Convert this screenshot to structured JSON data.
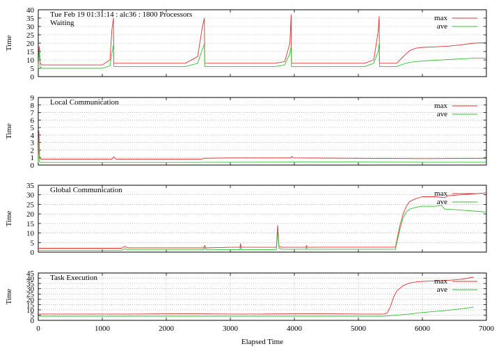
{
  "chart_data": [
    {
      "type": "line",
      "title": "Tue Feb 19 01:31:14 : alc36 : 1800 Processors",
      "label": "Waiting",
      "ylabel": "Time",
      "xlabel": "",
      "xlim": [
        0,
        7000
      ],
      "ylim": [
        0,
        40
      ],
      "yticks": [
        0,
        5,
        10,
        15,
        20,
        25,
        30,
        35,
        40
      ],
      "xtick_labels_shown": false,
      "grid": "horizontal-dotted",
      "legend": "top-right",
      "series": [
        {
          "name": "max",
          "color": "#e03030",
          "x": [
            0,
            15,
            30,
            60,
            500,
            1000,
            1120,
            1150,
            1175,
            1180,
            1200,
            1600,
            2300,
            2490,
            2560,
            2595,
            2600,
            2620,
            3000,
            3700,
            3850,
            3930,
            3950,
            3955,
            3970,
            4400,
            5100,
            5240,
            5310,
            5325,
            5330,
            5350,
            5550,
            5600,
            5700,
            5800,
            5900,
            6000,
            6200,
            6400,
            6600,
            6800,
            7000
          ],
          "y": [
            7,
            18,
            8,
            7,
            7,
            7,
            10,
            28,
            35,
            8,
            8,
            8,
            8,
            12,
            29,
            35,
            8,
            8,
            8,
            8,
            9,
            20,
            37,
            8,
            8,
            8,
            8,
            10,
            27,
            36,
            8,
            8,
            8,
            8,
            12,
            15.5,
            17,
            17.5,
            17.8,
            18.2,
            19,
            20,
            20.3
          ]
        },
        {
          "name": "ave",
          "color": "#30c030",
          "x": [
            0,
            15,
            30,
            60,
            500,
            1000,
            1120,
            1150,
            1175,
            1180,
            1200,
            1600,
            2300,
            2490,
            2560,
            2595,
            2600,
            2620,
            3000,
            3700,
            3850,
            3930,
            3950,
            3955,
            3970,
            4400,
            5100,
            5240,
            5310,
            5325,
            5330,
            5350,
            5550,
            5600,
            5700,
            5800,
            5900,
            6000,
            6200,
            6400,
            6600,
            6800,
            7000
          ],
          "y": [
            5,
            15,
            6,
            5,
            5,
            5,
            6.5,
            14,
            19,
            6,
            6,
            6,
            6,
            8,
            16,
            19.5,
            6,
            6,
            6,
            6,
            7,
            14,
            18,
            6,
            6,
            6,
            6,
            8,
            15,
            20,
            6,
            6,
            6,
            6,
            7.5,
            8.5,
            9,
            9.3,
            9.8,
            10.2,
            10.6,
            11,
            11
          ]
        }
      ]
    },
    {
      "type": "line",
      "label": "Local Communication",
      "ylabel": "Time",
      "xlabel": "",
      "xlim": [
        0,
        7000
      ],
      "ylim": [
        0,
        9
      ],
      "yticks": [
        0,
        1,
        2,
        3,
        4,
        5,
        6,
        7,
        8,
        9
      ],
      "xtick_labels_shown": false,
      "grid": "horizontal-dotted",
      "legend": "top-right",
      "series": [
        {
          "name": "max",
          "color": "#e03030",
          "x": [
            0,
            10,
            20,
            40,
            500,
            1150,
            1180,
            1210,
            2000,
            2550,
            2600,
            3000,
            3950,
            3960,
            3990,
            5000,
            6000,
            7000
          ],
          "y": [
            0.8,
            4.5,
            1.0,
            0.8,
            0.8,
            0.8,
            1.1,
            0.8,
            0.8,
            0.8,
            0.9,
            0.95,
            0.95,
            1.15,
            0.95,
            0.9,
            0.85,
            0.9
          ]
        },
        {
          "name": "ave",
          "color": "#30c030",
          "x": [
            0,
            10,
            20,
            40,
            1000,
            2000,
            3000,
            4000,
            5000,
            6000,
            7000
          ],
          "y": [
            0.3,
            3.0,
            0.4,
            0.35,
            0.35,
            0.35,
            0.38,
            0.4,
            0.4,
            0.38,
            0.38
          ]
        }
      ]
    },
    {
      "type": "line",
      "label": "Global Communication",
      "ylabel": "Time",
      "xlabel": "",
      "xlim": [
        0,
        7000
      ],
      "ylim": [
        0,
        35
      ],
      "yticks": [
        0,
        5,
        10,
        15,
        20,
        25,
        30,
        35
      ],
      "xtick_labels_shown": false,
      "grid": "horizontal-dotted",
      "legend": "top-right",
      "series": [
        {
          "name": "max",
          "color": "#e03030",
          "x": [
            0,
            500,
            1000,
            1300,
            1350,
            1400,
            2000,
            2580,
            2600,
            2620,
            3000,
            3150,
            3160,
            3170,
            3500,
            3720,
            3740,
            3760,
            3800,
            4180,
            4190,
            4200,
            4500,
            5000,
            5580,
            5600,
            5650,
            5700,
            5750,
            5800,
            5900,
            6000,
            6200,
            6350,
            6400,
            6600,
            6800,
            7000
          ],
          "y": [
            2,
            2,
            2,
            2,
            3,
            2.2,
            2.2,
            2.2,
            3.5,
            2.2,
            2.5,
            2.5,
            4.5,
            2.5,
            2.5,
            2.5,
            14,
            3,
            2.5,
            2.5,
            3.5,
            2.5,
            2.6,
            2.6,
            2.6,
            6,
            14,
            20,
            24,
            26.5,
            28,
            29,
            29,
            28.5,
            29.5,
            30,
            30.5,
            31
          ]
        },
        {
          "name": "ave",
          "color": "#30c030",
          "x": [
            0,
            500,
            1000,
            1300,
            1350,
            1400,
            2000,
            2580,
            2600,
            2620,
            3000,
            3150,
            3160,
            3170,
            3500,
            3720,
            3740,
            3760,
            3800,
            4180,
            4190,
            4200,
            4500,
            5000,
            5580,
            5600,
            5650,
            5700,
            5750,
            5800,
            5900,
            6000,
            6200,
            6300,
            6350,
            6400,
            6600,
            6800,
            7000
          ],
          "y": [
            1,
            1,
            1,
            1,
            1.8,
            1.2,
            1.2,
            1.2,
            2.5,
            1.2,
            1.3,
            1.3,
            3,
            1.3,
            1.3,
            1.3,
            11,
            2,
            1.5,
            1.5,
            2.5,
            1.5,
            1.5,
            1.5,
            1.5,
            5,
            12,
            18,
            21,
            22.5,
            23.5,
            24,
            24,
            24.5,
            22.5,
            22.5,
            22,
            21.5,
            21
          ]
        }
      ]
    },
    {
      "type": "line",
      "label": "Task Execution",
      "ylabel": "Time",
      "xlabel": "Elapsed Time",
      "xlim": [
        0,
        7000
      ],
      "ylim": [
        0,
        45
      ],
      "yticks": [
        0,
        5,
        10,
        15,
        20,
        25,
        30,
        35,
        40,
        45
      ],
      "xticks": [
        0,
        1000,
        2000,
        3000,
        4000,
        5000,
        6000,
        7000
      ],
      "xtick_labels_shown": true,
      "grid": "both-dotted",
      "legend": "top-right",
      "series": [
        {
          "name": "max",
          "color": "#e03030",
          "x": [
            0,
            500,
            1000,
            1500,
            2000,
            2500,
            3000,
            3500,
            4000,
            4500,
            5000,
            5400,
            5450,
            5500,
            5550,
            5600,
            5700,
            5800,
            5900,
            6000,
            6200,
            6400,
            6600,
            6800
          ],
          "y": [
            6,
            6,
            6,
            6,
            6.2,
            6.2,
            6,
            6,
            6.2,
            6.2,
            6,
            6,
            7,
            13,
            22,
            28,
            33,
            35.5,
            36.5,
            37,
            37.5,
            38,
            39,
            41
          ]
        },
        {
          "name": "ave",
          "color": "#30c030",
          "x": [
            0,
            500,
            1000,
            2000,
            3000,
            4000,
            5000,
            5400,
            5600,
            5800,
            6000,
            6200,
            6400,
            6600,
            6800
          ],
          "y": [
            4,
            4,
            4,
            4,
            4,
            4,
            4,
            4,
            5,
            6,
            7.5,
            8.5,
            9.5,
            11,
            12.5
          ]
        }
      ]
    }
  ]
}
